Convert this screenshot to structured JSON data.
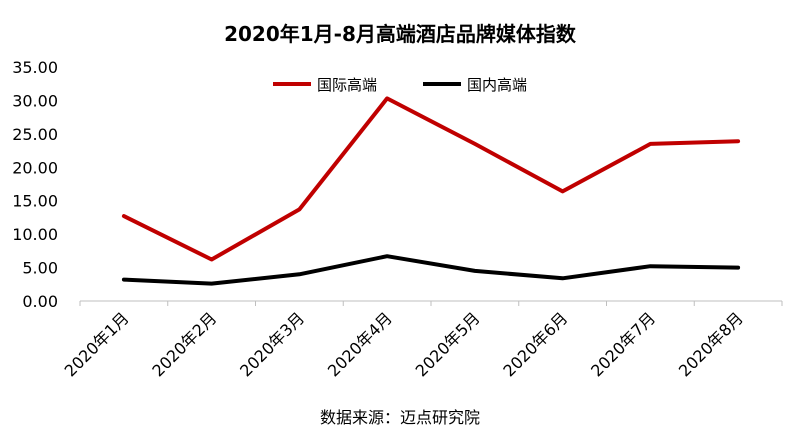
{
  "chart_data": {
    "type": "line",
    "title": "2020年1月-8月高端酒店品牌媒体指数",
    "source": "数据来源：迈点研究院",
    "categories": [
      "2020年1月",
      "2020年2月",
      "2020年3月",
      "2020年4月",
      "2020年5月",
      "2020年6月",
      "2020年7月",
      "2020年8月"
    ],
    "series": [
      {
        "name": "国际高端",
        "color": "#c00000",
        "values": [
          12.7,
          6.2,
          13.7,
          30.3,
          23.5,
          16.4,
          23.5,
          23.9
        ]
      },
      {
        "name": "国内高端",
        "color": "#000000",
        "values": [
          3.2,
          2.6,
          4.0,
          6.7,
          4.5,
          3.4,
          5.2,
          5.0
        ]
      }
    ],
    "y_ticks": [
      "0.00",
      "5.00",
      "10.00",
      "15.00",
      "20.00",
      "25.00",
      "30.00",
      "35.00"
    ],
    "ylim": [
      0,
      35
    ],
    "grid": false,
    "legend_position": "top-center"
  }
}
